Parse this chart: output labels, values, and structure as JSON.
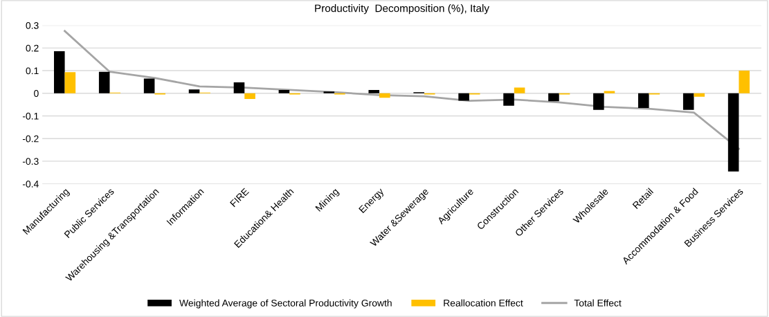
{
  "chart_data": {
    "type": "bar",
    "title": "Productivity  Decomposition (%), Italy",
    "categories": [
      "Manufacturing",
      "Public Services",
      "Warehousing &Transportation",
      "Information",
      "FIRE",
      "Education& Health",
      "Mining",
      "Energy",
      "Water &Sewerage",
      "Agriculture",
      "Construction",
      "Other Services",
      "Wholesale",
      "Retail",
      "Accommodation & Food",
      "Business Services"
    ],
    "series": [
      {
        "name": "Weighted Average of Sectoral Productivity Growth",
        "color": "#000000",
        "values": [
          0.186,
          0.095,
          0.065,
          0.017,
          0.048,
          0.015,
          0.008,
          0.015,
          0.005,
          -0.033,
          -0.055,
          -0.035,
          -0.073,
          -0.065,
          -0.073,
          -0.345
        ]
      },
      {
        "name": "Reallocation Effect",
        "color": "#ffc000",
        "values": [
          0.093,
          0.003,
          -0.005,
          0.003,
          -0.025,
          -0.005,
          -0.005,
          -0.02,
          -0.005,
          -0.005,
          0.025,
          -0.005,
          0.01,
          -0.005,
          -0.015,
          0.1
        ]
      },
      {
        "name": "Total Effect",
        "type": "line",
        "color": "#a5a5a5",
        "values": [
          0.275,
          0.095,
          0.068,
          0.03,
          0.025,
          0.015,
          0.005,
          -0.008,
          -0.013,
          -0.033,
          -0.028,
          -0.04,
          -0.06,
          -0.068,
          -0.085,
          -0.245
        ]
      }
    ],
    "ylim": [
      -0.4,
      0.3
    ],
    "yticks": [
      -0.4,
      -0.3,
      -0.2,
      -0.1,
      0,
      0.1,
      0.2,
      0.3
    ],
    "grid": "y",
    "legend": "bottom"
  }
}
